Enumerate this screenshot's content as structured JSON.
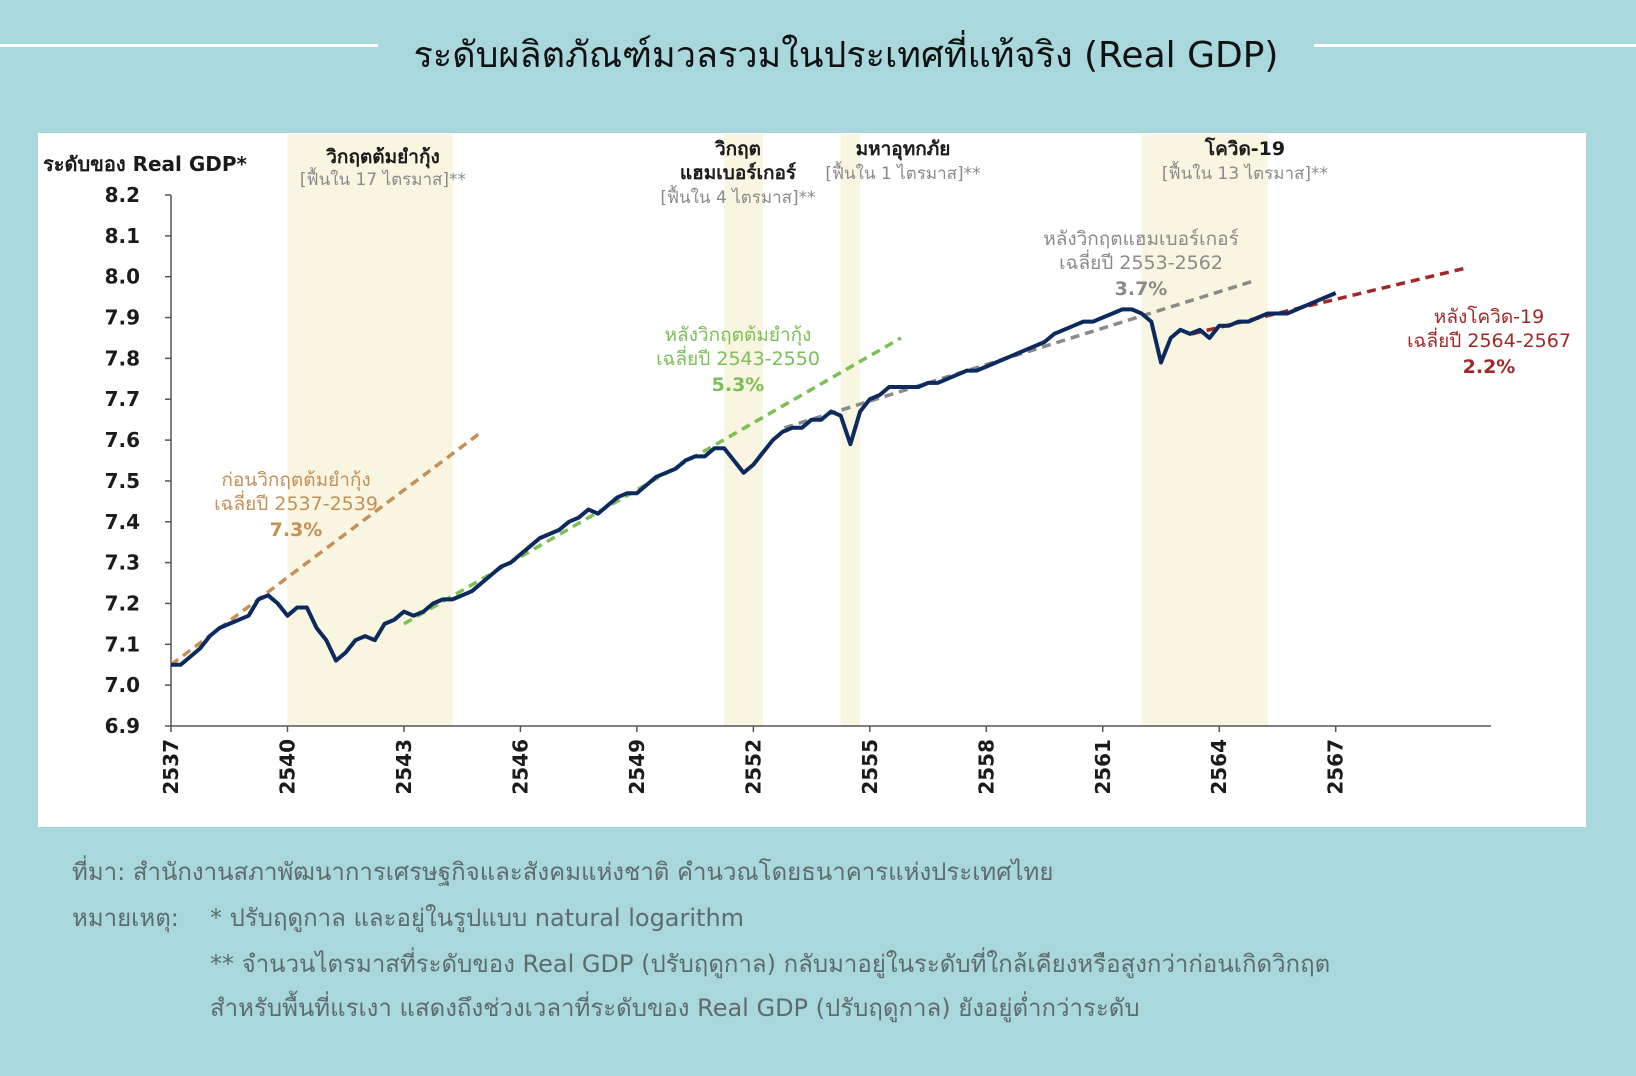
{
  "title": "ระดับผลิตภัณฑ์มวลรวมในประเทศที่แท้จริง (Real GDP)",
  "colors": {
    "background": "#a8d8db",
    "gdp_line": "#0d2a5e",
    "shade": "#f8f5e1",
    "pre_crisis_trend": "#c49056",
    "post_crisis_trend": "#7cbf56",
    "post_hamburger_trend": "#8a8a8a",
    "post_covid_trend": "#a0282a"
  },
  "chart_data": {
    "type": "line",
    "ylabel": "ระดับของ Real GDP*",
    "ylim": [
      6.9,
      8.2
    ],
    "yticks": [
      "8.2",
      "8.1",
      "8.0",
      "7.9",
      "7.8",
      "7.7",
      "7.6",
      "7.5",
      "7.4",
      "7.3",
      "7.2",
      "7.1",
      "7.0",
      "6.9"
    ],
    "xlim": [
      2537,
      2571
    ],
    "xticks": [
      "2537",
      "2540",
      "2543",
      "2546",
      "2549",
      "2552",
      "2555",
      "2558",
      "2561",
      "2564",
      "2567"
    ],
    "series": [
      {
        "role": "gdp",
        "points": [
          [
            2537.0,
            7.05
          ],
          [
            2537.25,
            7.05
          ],
          [
            2537.5,
            7.07
          ],
          [
            2537.75,
            7.09
          ],
          [
            2538.0,
            7.12
          ],
          [
            2538.25,
            7.14
          ],
          [
            2538.5,
            7.15
          ],
          [
            2538.75,
            7.16
          ],
          [
            2539.0,
            7.17
          ],
          [
            2539.25,
            7.21
          ],
          [
            2539.5,
            7.22
          ],
          [
            2539.75,
            7.2
          ],
          [
            2540.0,
            7.17
          ],
          [
            2540.25,
            7.19
          ],
          [
            2540.5,
            7.19
          ],
          [
            2540.75,
            7.14
          ],
          [
            2541.0,
            7.11
          ],
          [
            2541.25,
            7.06
          ],
          [
            2541.5,
            7.08
          ],
          [
            2541.75,
            7.11
          ],
          [
            2542.0,
            7.12
          ],
          [
            2542.25,
            7.11
          ],
          [
            2542.5,
            7.15
          ],
          [
            2542.75,
            7.16
          ],
          [
            2543.0,
            7.18
          ],
          [
            2543.25,
            7.17
          ],
          [
            2543.5,
            7.18
          ],
          [
            2543.75,
            7.2
          ],
          [
            2544.0,
            7.21
          ],
          [
            2544.25,
            7.21
          ],
          [
            2544.5,
            7.22
          ],
          [
            2544.75,
            7.23
          ],
          [
            2545.0,
            7.25
          ],
          [
            2545.25,
            7.27
          ],
          [
            2545.5,
            7.29
          ],
          [
            2545.75,
            7.3
          ],
          [
            2546.0,
            7.32
          ],
          [
            2546.25,
            7.34
          ],
          [
            2546.5,
            7.36
          ],
          [
            2546.75,
            7.37
          ],
          [
            2547.0,
            7.38
          ],
          [
            2547.25,
            7.4
          ],
          [
            2547.5,
            7.41
          ],
          [
            2547.75,
            7.43
          ],
          [
            2548.0,
            7.42
          ],
          [
            2548.25,
            7.44
          ],
          [
            2548.5,
            7.46
          ],
          [
            2548.75,
            7.47
          ],
          [
            2549.0,
            7.47
          ],
          [
            2549.25,
            7.49
          ],
          [
            2549.5,
            7.51
          ],
          [
            2549.75,
            7.52
          ],
          [
            2550.0,
            7.53
          ],
          [
            2550.25,
            7.55
          ],
          [
            2550.5,
            7.56
          ],
          [
            2550.75,
            7.56
          ],
          [
            2551.0,
            7.58
          ],
          [
            2551.25,
            7.58
          ],
          [
            2551.5,
            7.55
          ],
          [
            2551.75,
            7.52
          ],
          [
            2552.0,
            7.54
          ],
          [
            2552.25,
            7.57
          ],
          [
            2552.5,
            7.6
          ],
          [
            2552.75,
            7.62
          ],
          [
            2553.0,
            7.63
          ],
          [
            2553.25,
            7.63
          ],
          [
            2553.5,
            7.65
          ],
          [
            2553.75,
            7.65
          ],
          [
            2554.0,
            7.67
          ],
          [
            2554.25,
            7.66
          ],
          [
            2554.5,
            7.59
          ],
          [
            2554.75,
            7.67
          ],
          [
            2555.0,
            7.7
          ],
          [
            2555.25,
            7.71
          ],
          [
            2555.5,
            7.73
          ],
          [
            2555.75,
            7.73
          ],
          [
            2556.0,
            7.73
          ],
          [
            2556.25,
            7.73
          ],
          [
            2556.5,
            7.74
          ],
          [
            2556.75,
            7.74
          ],
          [
            2557.0,
            7.75
          ],
          [
            2557.25,
            7.76
          ],
          [
            2557.5,
            7.77
          ],
          [
            2557.75,
            7.77
          ],
          [
            2558.0,
            7.78
          ],
          [
            2558.25,
            7.79
          ],
          [
            2558.5,
            7.8
          ],
          [
            2558.75,
            7.81
          ],
          [
            2559.0,
            7.82
          ],
          [
            2559.25,
            7.83
          ],
          [
            2559.5,
            7.84
          ],
          [
            2559.75,
            7.86
          ],
          [
            2560.0,
            7.87
          ],
          [
            2560.25,
            7.88
          ],
          [
            2560.5,
            7.89
          ],
          [
            2560.75,
            7.89
          ],
          [
            2561.0,
            7.9
          ],
          [
            2561.25,
            7.91
          ],
          [
            2561.5,
            7.92
          ],
          [
            2561.75,
            7.92
          ],
          [
            2562.0,
            7.91
          ],
          [
            2562.25,
            7.89
          ],
          [
            2562.5,
            7.79
          ],
          [
            2562.75,
            7.85
          ],
          [
            2563.0,
            7.87
          ],
          [
            2563.25,
            7.86
          ],
          [
            2563.5,
            7.87
          ],
          [
            2563.75,
            7.85
          ],
          [
            2564.0,
            7.88
          ],
          [
            2564.25,
            7.88
          ],
          [
            2564.5,
            7.89
          ],
          [
            2564.75,
            7.89
          ],
          [
            2565.0,
            7.9
          ],
          [
            2565.25,
            7.91
          ],
          [
            2565.5,
            7.91
          ],
          [
            2565.75,
            7.91
          ],
          [
            2566.0,
            7.92
          ],
          [
            2566.25,
            7.93
          ],
          [
            2566.5,
            7.94
          ],
          [
            2566.75,
            7.95
          ],
          [
            2567.0,
            7.96
          ]
        ]
      },
      {
        "role": "trend",
        "label": "ก่อนวิกฤตต้มยำกุ้ง",
        "period": "เฉลี่ยปี 2537-2539",
        "growth": "7.3%",
        "points": [
          [
            2537.0,
            7.05
          ],
          [
            2545.0,
            7.62
          ]
        ]
      },
      {
        "role": "trend",
        "label": "หลังวิกฤตต้มยำกุ้ง",
        "period": "เฉลี่ยปี 2543-2550",
        "growth": "5.3%",
        "points": [
          [
            2543.0,
            7.15
          ],
          [
            2555.8,
            7.85
          ]
        ]
      },
      {
        "role": "trend",
        "label": "หลังวิกฤตแฮมเบอร์เกอร์",
        "period": "เฉลี่ยปี 2553-2562",
        "growth": "3.7%",
        "points": [
          [
            2552.8,
            7.63
          ],
          [
            2564.9,
            7.99
          ]
        ]
      },
      {
        "role": "trend",
        "label": "หลังโควิด-19",
        "period": "เฉลี่ยปี 2564-2567",
        "growth": "2.2%",
        "points": [
          [
            2563.3,
            7.86
          ],
          [
            2570.3,
            8.02
          ]
        ]
      }
    ],
    "shaded_regions": [
      {
        "from": 2540.0,
        "to": 2544.25,
        "title": "วิกฤตต้มยำกุ้ง",
        "subtitle": "[ฟื้นใน 17 ไตรมาส]**"
      },
      {
        "from": 2551.25,
        "to": 2552.25,
        "title_line1": "วิกฤต",
        "title_line2": "แฮมเบอร์เกอร์",
        "subtitle": "[ฟื้นใน 4 ไตรมาส]**"
      },
      {
        "from": 2554.25,
        "to": 2554.75,
        "title": "มหาอุทกภัย",
        "subtitle": "[ฟื้นใน 1 ไตรมาส]**"
      },
      {
        "from": 2562.0,
        "to": 2565.25,
        "title": "โควิด-19",
        "subtitle": "[ฟื้นใน 13 ไตรมาส]**"
      }
    ]
  },
  "footnotes": {
    "source": "ที่มา: สำนักงานสภาพัฒนาการเศรษฐกิจและสังคมแห่งชาติ คำนวณโดยธนาคารแห่งประเทศไทย",
    "note_label": "หมายเหตุ:",
    "note1": "* ปรับฤดูกาล และอยู่ในรูปแบบ natural logarithm",
    "note2": "** จำนวนไตรมาสที่ระดับของ Real GDP (ปรับฤดูกาล) กลับมาอยู่ในระดับที่ใกล้เคียงหรือสูงกว่าก่อนเกิดวิกฤต",
    "note3": "สำหรับพื้นที่แรเงา แสดงถึงช่วงเวลาที่ระดับของ Real GDP (ปรับฤดูกาล) ยังอยู่ต่ำกว่าระดับ"
  }
}
